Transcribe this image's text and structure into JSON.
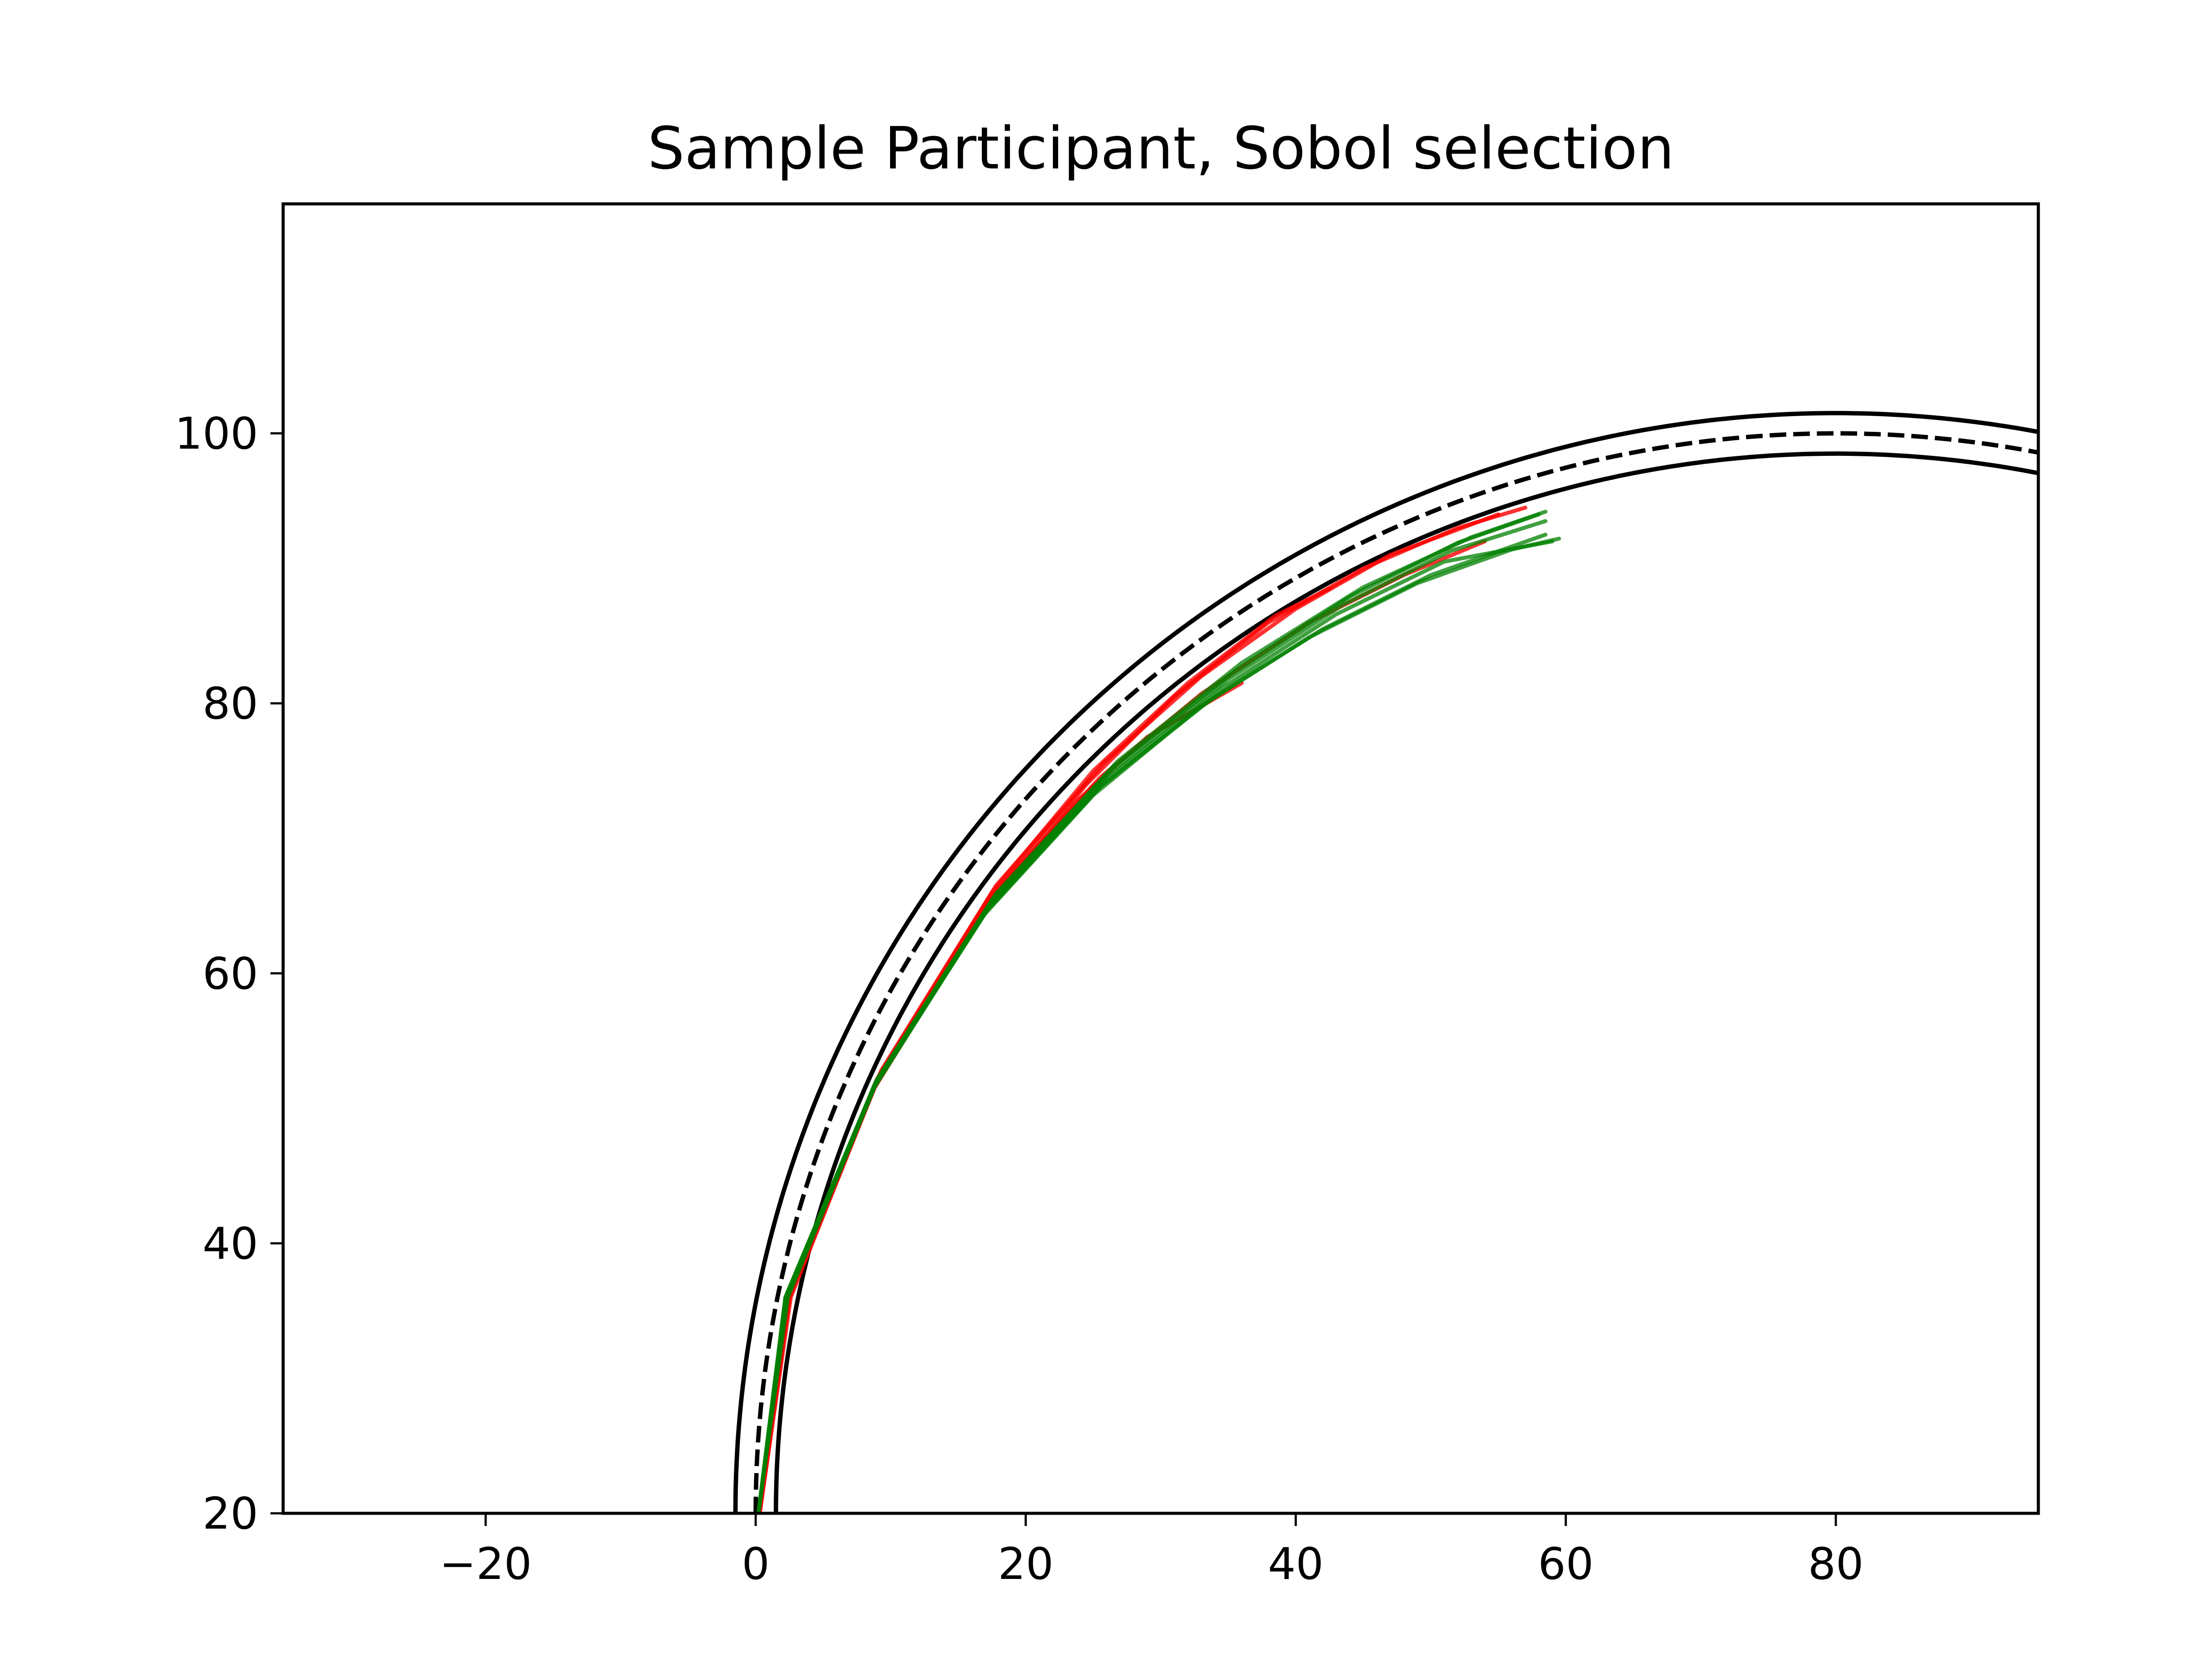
{
  "chart_data": {
    "type": "line",
    "title": "Sample Participant, Sobol selection",
    "xlabel": "",
    "ylabel": "",
    "xlim": [
      -35,
      95
    ],
    "ylim": [
      20,
      117
    ],
    "x_ticks": [
      -20,
      0,
      20,
      40,
      60,
      80
    ],
    "x_tick_labels": [
      "−20",
      "0",
      "20",
      "40",
      "60",
      "80"
    ],
    "y_ticks": [
      20,
      40,
      60,
      80,
      100
    ],
    "y_tick_labels": [
      "20",
      "40",
      "60",
      "80",
      "100"
    ],
    "grid": false,
    "legend": "none",
    "road": {
      "center": [
        80,
        20
      ],
      "centerline_radius": 80,
      "outer_radius": 81.5,
      "inner_radius": 78.5
    },
    "series": [
      {
        "role": "road-outer-edge",
        "color": "#000000",
        "style": "solid",
        "points": [
          [
            -1.5,
            20
          ],
          [
            0.0,
            35.9
          ],
          [
            6.1,
            51.2
          ],
          [
            23.4,
            77.6
          ],
          [
            43.1,
            91.9
          ],
          [
            64.3,
            99.8
          ],
          [
            80.0,
            101.5
          ],
          [
            95.0,
            100.1
          ]
        ]
      },
      {
        "role": "road-inner-edge",
        "color": "#000000",
        "style": "solid",
        "points": [
          [
            1.5,
            20
          ],
          [
            3.0,
            35.3
          ],
          [
            8.9,
            50.0
          ],
          [
            25.5,
            75.5
          ],
          [
            44.4,
            89.2
          ],
          [
            64.9,
            96.9
          ],
          [
            80.0,
            98.5
          ],
          [
            95.0,
            97.1
          ]
        ]
      },
      {
        "role": "road-centerline",
        "color": "#000000",
        "style": "dashed",
        "points": [
          [
            0.0,
            20
          ],
          [
            1.5,
            35.6
          ],
          [
            7.5,
            50.6
          ],
          [
            24.4,
            76.6
          ],
          [
            43.7,
            90.6
          ],
          [
            64.6,
            98.3
          ],
          [
            80.0,
            100.0
          ],
          [
            95.0,
            98.6
          ]
        ]
      },
      {
        "role": "trajectory",
        "color": "#ff0000",
        "opacity": 0.8,
        "points": [
          [
            0.3,
            20
          ],
          [
            2.5,
            36
          ],
          [
            9.0,
            52
          ],
          [
            17.0,
            65
          ],
          [
            24.5,
            74
          ],
          [
            31.0,
            80.5
          ],
          [
            38.0,
            86
          ],
          [
            45.0,
            90
          ],
          [
            52.0,
            93
          ],
          [
            57.0,
            94.5
          ]
        ]
      },
      {
        "role": "trajectory",
        "color": "#ff0000",
        "opacity": 0.8,
        "points": [
          [
            0.3,
            20
          ],
          [
            2.4,
            36
          ],
          [
            8.8,
            51.5
          ],
          [
            16.5,
            64
          ],
          [
            23.5,
            72.5
          ],
          [
            29.0,
            77.5
          ],
          [
            36.0,
            81.5
          ]
        ]
      },
      {
        "role": "trajectory",
        "color": "#ff0000",
        "opacity": 0.8,
        "points": [
          [
            0.3,
            20
          ],
          [
            2.5,
            36
          ],
          [
            9.2,
            52.5
          ],
          [
            17.5,
            66
          ],
          [
            25.0,
            75
          ],
          [
            32.0,
            81.5
          ],
          [
            38.5,
            86.5
          ],
          [
            42.5,
            88.5
          ]
        ]
      },
      {
        "role": "trajectory",
        "color": "#ff0000",
        "opacity": 0.8,
        "points": [
          [
            0.3,
            20
          ],
          [
            2.5,
            36
          ],
          [
            9.0,
            52.2
          ],
          [
            17.2,
            65.4
          ],
          [
            25.5,
            74.5
          ],
          [
            33.0,
            80.7
          ],
          [
            41.0,
            86.0
          ],
          [
            48.0,
            89.5
          ],
          [
            54.0,
            92.0
          ]
        ]
      },
      {
        "role": "trajectory",
        "color": "#ff0000",
        "opacity": 0.8,
        "points": [
          [
            0.3,
            20
          ],
          [
            2.6,
            36
          ],
          [
            9.3,
            52.8
          ],
          [
            17.8,
            66.5
          ],
          [
            25.8,
            75.6
          ],
          [
            33.0,
            82.0
          ],
          [
            40.0,
            87.0
          ],
          [
            47.0,
            91.0
          ],
          [
            55.0,
            94.0
          ]
        ]
      },
      {
        "role": "trajectory",
        "color": "#008000",
        "opacity": 0.75,
        "points": [
          [
            0.2,
            20
          ],
          [
            2.2,
            36
          ],
          [
            8.7,
            51.5
          ],
          [
            17.0,
            64.5
          ],
          [
            25.5,
            73.8
          ],
          [
            34.0,
            80.5
          ],
          [
            42.0,
            85.5
          ],
          [
            50.0,
            89.5
          ],
          [
            58.5,
            92.5
          ]
        ]
      },
      {
        "role": "trajectory",
        "color": "#008000",
        "opacity": 0.75,
        "points": [
          [
            0.2,
            20
          ],
          [
            2.2,
            36
          ],
          [
            8.8,
            51.7
          ],
          [
            17.3,
            64.9
          ],
          [
            26.0,
            74.4
          ],
          [
            34.5,
            81.1
          ],
          [
            43.0,
            86.6
          ],
          [
            51.0,
            90.5
          ],
          [
            59.0,
            92.0
          ]
        ]
      },
      {
        "role": "trajectory",
        "color": "#008000",
        "opacity": 0.75,
        "points": [
          [
            0.2,
            20
          ],
          [
            2.3,
            36
          ],
          [
            8.9,
            52.0
          ],
          [
            17.5,
            65.3
          ],
          [
            26.3,
            74.9
          ],
          [
            35.0,
            81.8
          ],
          [
            43.5,
            87.3
          ],
          [
            51.5,
            91.3
          ],
          [
            58.5,
            93.5
          ]
        ]
      },
      {
        "role": "trajectory",
        "color": "#008000",
        "opacity": 0.75,
        "points": [
          [
            0.2,
            20
          ],
          [
            2.3,
            36
          ],
          [
            9.0,
            52.1
          ],
          [
            17.6,
            65.6
          ],
          [
            26.5,
            75.3
          ],
          [
            35.5,
            82.4
          ],
          [
            44.0,
            87.9
          ],
          [
            52.0,
            91.9
          ],
          [
            58.0,
            94.0
          ]
        ]
      },
      {
        "role": "trajectory",
        "color": "#008000",
        "opacity": 0.75,
        "points": [
          [
            0.2,
            20
          ],
          [
            2.4,
            36
          ],
          [
            9.1,
            52.3
          ],
          [
            17.8,
            65.9
          ],
          [
            26.8,
            75.7
          ],
          [
            36.0,
            83.0
          ],
          [
            45.0,
            88.6
          ],
          [
            53.0,
            92.3
          ],
          [
            58.5,
            94.2
          ]
        ]
      },
      {
        "role": "trajectory",
        "color": "#008000",
        "opacity": 0.75,
        "points": [
          [
            0.2,
            20
          ],
          [
            2.2,
            36
          ],
          [
            8.7,
            51.4
          ],
          [
            16.8,
            64.2
          ],
          [
            25.0,
            73.2
          ],
          [
            33.0,
            79.8
          ],
          [
            41.0,
            84.9
          ],
          [
            49.0,
            88.9
          ],
          [
            56.0,
            91.4
          ],
          [
            59.5,
            92.2
          ]
        ]
      }
    ]
  }
}
